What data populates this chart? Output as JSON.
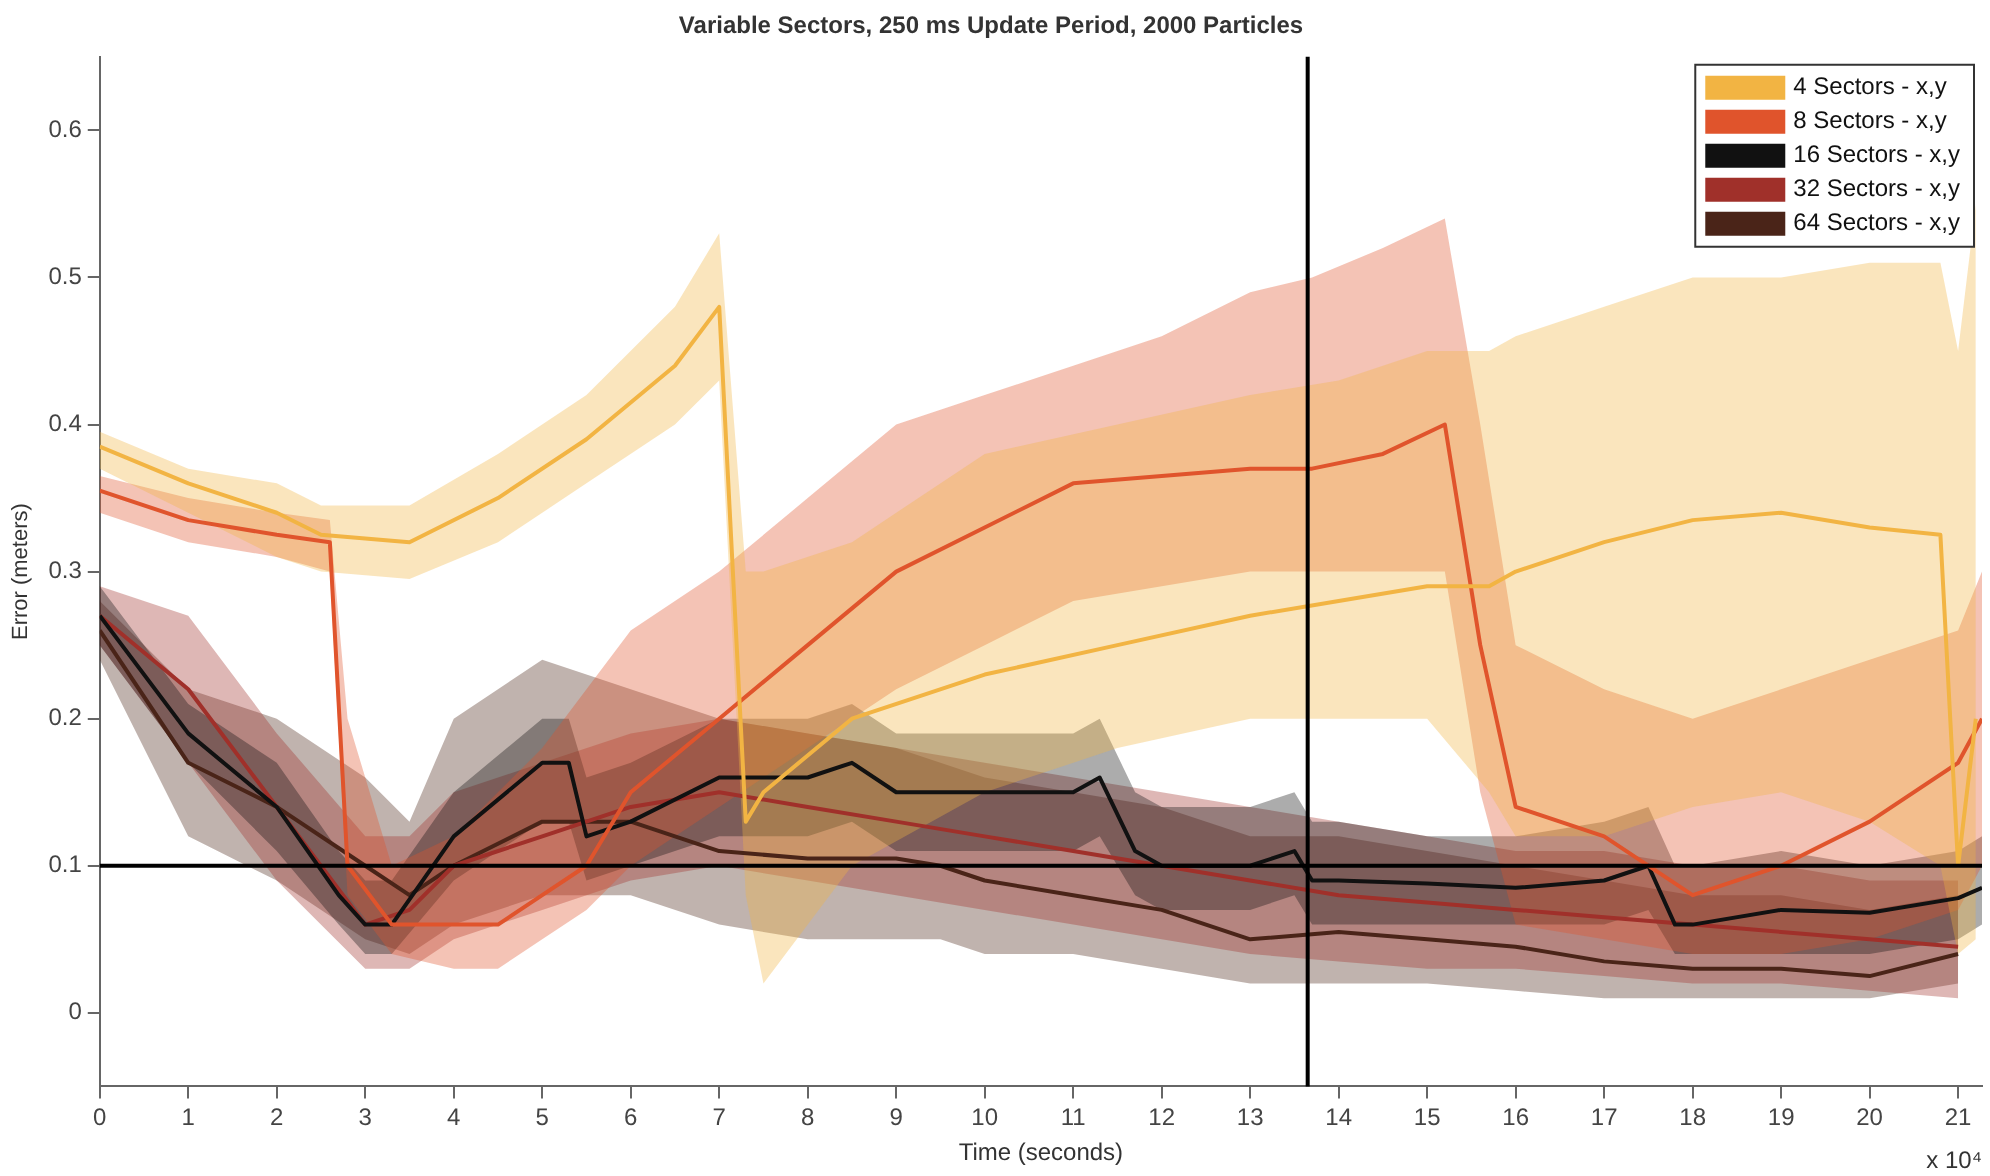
{
  "chart_data": {
    "type": "line",
    "title": "Variable Sectors, 250 ms Update Period, 2000 Particles",
    "xlabel": "Time (seconds)",
    "ylabel": "Error (meters)",
    "annotations": [
      "x 10⁴"
    ],
    "xlim": [
      0,
      21.27
    ],
    "xticks": [
      0,
      1,
      2,
      3,
      4,
      5,
      6,
      7,
      8,
      9,
      10,
      11,
      12,
      13,
      14,
      15,
      16,
      17,
      18,
      19,
      20,
      21
    ],
    "ylim": [
      -0.05,
      0.65
    ],
    "yticks": [
      0,
      0.1,
      0.2,
      0.3,
      0.4,
      0.5,
      0.6
    ],
    "grid": false,
    "legend": "top right",
    "marker": "none",
    "line_style": "solid",
    "ref_lines": [
      {
        "axis": "y",
        "value": 0.1,
        "color": "#000000"
      },
      {
        "axis": "x",
        "value": 13.65,
        "color": "#000000"
      }
    ],
    "series": [
      {
        "name": "4 Sectors - x,y",
        "color": "#f2b443",
        "x": [
          0,
          1,
          2,
          2.5,
          3.5,
          4.5,
          5.5,
          6.5,
          7,
          7.3,
          7.5,
          8.5,
          10,
          11.5,
          13,
          14,
          15,
          15.7,
          16,
          17,
          18,
          19,
          20,
          20.8,
          21,
          21.2
        ],
        "values": [
          0.385,
          0.36,
          0.34,
          0.325,
          0.32,
          0.35,
          0.39,
          0.44,
          0.48,
          0.13,
          0.15,
          0.2,
          0.23,
          0.25,
          0.27,
          0.28,
          0.29,
          0.29,
          0.3,
          0.32,
          0.335,
          0.34,
          0.33,
          0.325,
          0.1,
          0.2
        ],
        "lower": [
          0.37,
          0.34,
          0.31,
          0.3,
          0.295,
          0.32,
          0.36,
          0.4,
          0.43,
          0.08,
          0.02,
          0.1,
          0.15,
          0.18,
          0.2,
          0.2,
          0.2,
          0.15,
          0.12,
          0.12,
          0.14,
          0.15,
          0.13,
          0.1,
          0.04,
          0.05
        ],
        "upper": [
          0.395,
          0.37,
          0.36,
          0.345,
          0.345,
          0.38,
          0.42,
          0.48,
          0.53,
          0.3,
          0.3,
          0.32,
          0.38,
          0.4,
          0.42,
          0.43,
          0.45,
          0.45,
          0.46,
          0.48,
          0.5,
          0.5,
          0.51,
          0.51,
          0.45,
          0.55
        ]
      },
      {
        "name": "8 Sectors - x,y",
        "color": "#e0542c",
        "x": [
          0,
          1,
          2,
          2.6,
          2.8,
          3.3,
          4,
          4.5,
          5,
          5.5,
          6,
          7,
          8,
          9,
          10,
          11,
          12,
          13,
          13.7,
          14.5,
          15.2,
          15.6,
          16,
          17,
          18,
          19,
          20,
          21,
          21.27
        ],
        "values": [
          0.355,
          0.335,
          0.325,
          0.32,
          0.1,
          0.06,
          0.06,
          0.06,
          0.08,
          0.1,
          0.15,
          0.2,
          0.25,
          0.3,
          0.33,
          0.36,
          0.365,
          0.37,
          0.37,
          0.38,
          0.4,
          0.25,
          0.14,
          0.12,
          0.08,
          0.1,
          0.13,
          0.17,
          0.2
        ],
        "lower": [
          0.34,
          0.32,
          0.31,
          0.3,
          0.08,
          0.04,
          0.03,
          0.03,
          0.05,
          0.07,
          0.1,
          0.14,
          0.18,
          0.22,
          0.25,
          0.28,
          0.29,
          0.3,
          0.3,
          0.3,
          0.3,
          0.15,
          0.06,
          0.05,
          0.04,
          0.04,
          0.05,
          0.07,
          0.1
        ],
        "upper": [
          0.365,
          0.35,
          0.34,
          0.335,
          0.2,
          0.1,
          0.12,
          0.15,
          0.18,
          0.22,
          0.26,
          0.3,
          0.35,
          0.4,
          0.42,
          0.44,
          0.46,
          0.49,
          0.5,
          0.52,
          0.54,
          0.4,
          0.25,
          0.22,
          0.2,
          0.22,
          0.24,
          0.26,
          0.3
        ]
      },
      {
        "name": "16 Sectors - x,y",
        "color": "#111111",
        "x": [
          0,
          1,
          2,
          2.7,
          3,
          3.3,
          4,
          5,
          5.3,
          5.5,
          6,
          7,
          8,
          8.5,
          9,
          10,
          11,
          11.3,
          11.7,
          12,
          13,
          13.5,
          13.7,
          14,
          15,
          16,
          17,
          17.5,
          17.8,
          18,
          19,
          20,
          21,
          21.27
        ],
        "values": [
          0.27,
          0.19,
          0.14,
          0.08,
          0.06,
          0.06,
          0.12,
          0.17,
          0.17,
          0.12,
          0.13,
          0.16,
          0.16,
          0.17,
          0.15,
          0.15,
          0.15,
          0.16,
          0.11,
          0.1,
          0.1,
          0.11,
          0.09,
          0.09,
          0.088,
          0.085,
          0.09,
          0.1,
          0.06,
          0.06,
          0.07,
          0.068,
          0.078,
          0.085
        ],
        "lower": [
          0.25,
          0.17,
          0.11,
          0.06,
          0.04,
          0.04,
          0.09,
          0.13,
          0.13,
          0.09,
          0.1,
          0.12,
          0.12,
          0.13,
          0.11,
          0.11,
          0.11,
          0.12,
          0.08,
          0.07,
          0.07,
          0.08,
          0.06,
          0.06,
          0.06,
          0.06,
          0.06,
          0.07,
          0.04,
          0.04,
          0.04,
          0.04,
          0.05,
          0.06
        ],
        "upper": [
          0.29,
          0.21,
          0.17,
          0.11,
          0.09,
          0.09,
          0.15,
          0.2,
          0.2,
          0.16,
          0.17,
          0.2,
          0.2,
          0.21,
          0.19,
          0.19,
          0.19,
          0.2,
          0.15,
          0.14,
          0.14,
          0.15,
          0.13,
          0.13,
          0.12,
          0.12,
          0.13,
          0.14,
          0.1,
          0.1,
          0.11,
          0.1,
          0.11,
          0.12
        ]
      },
      {
        "name": "32 Sectors - x,y",
        "color": "#a0302a",
        "x": [
          0,
          1,
          2,
          3,
          3.5,
          4,
          5,
          6,
          7,
          8,
          9,
          10,
          11,
          12,
          13,
          14,
          15,
          16,
          17,
          18,
          19,
          20,
          21
        ],
        "values": [
          0.27,
          0.22,
          0.14,
          0.06,
          0.07,
          0.1,
          0.12,
          0.14,
          0.15,
          0.14,
          0.13,
          0.12,
          0.11,
          0.1,
          0.09,
          0.08,
          0.075,
          0.07,
          0.065,
          0.06,
          0.055,
          0.05,
          0.045
        ],
        "lower": [
          0.25,
          0.17,
          0.09,
          0.03,
          0.03,
          0.05,
          0.07,
          0.09,
          0.1,
          0.09,
          0.08,
          0.07,
          0.06,
          0.05,
          0.04,
          0.035,
          0.03,
          0.03,
          0.025,
          0.02,
          0.02,
          0.015,
          0.01
        ],
        "upper": [
          0.29,
          0.27,
          0.19,
          0.12,
          0.12,
          0.15,
          0.17,
          0.19,
          0.2,
          0.19,
          0.18,
          0.17,
          0.16,
          0.15,
          0.14,
          0.13,
          0.12,
          0.11,
          0.11,
          0.1,
          0.1,
          0.09,
          0.09
        ]
      },
      {
        "name": "64 Sectors - x,y",
        "color": "#4a2418",
        "x": [
          0,
          1,
          2,
          3,
          3.5,
          4,
          5,
          6,
          7,
          8,
          9,
          9.5,
          10,
          11,
          12,
          13,
          14,
          15,
          16,
          17,
          18,
          19,
          20,
          21
        ],
        "values": [
          0.26,
          0.17,
          0.14,
          0.1,
          0.08,
          0.1,
          0.13,
          0.13,
          0.11,
          0.105,
          0.105,
          0.1,
          0.09,
          0.08,
          0.07,
          0.05,
          0.055,
          0.05,
          0.045,
          0.035,
          0.03,
          0.03,
          0.025,
          0.04
        ],
        "lower": [
          0.24,
          0.12,
          0.09,
          0.05,
          0.04,
          0.06,
          0.08,
          0.08,
          0.06,
          0.05,
          0.05,
          0.05,
          0.04,
          0.04,
          0.03,
          0.02,
          0.02,
          0.02,
          0.015,
          0.01,
          0.01,
          0.01,
          0.01,
          0.02
        ],
        "upper": [
          0.28,
          0.22,
          0.2,
          0.16,
          0.13,
          0.2,
          0.24,
          0.22,
          0.2,
          0.19,
          0.18,
          0.17,
          0.16,
          0.15,
          0.14,
          0.12,
          0.12,
          0.11,
          0.1,
          0.09,
          0.08,
          0.08,
          0.07,
          0.08
        ]
      }
    ]
  }
}
